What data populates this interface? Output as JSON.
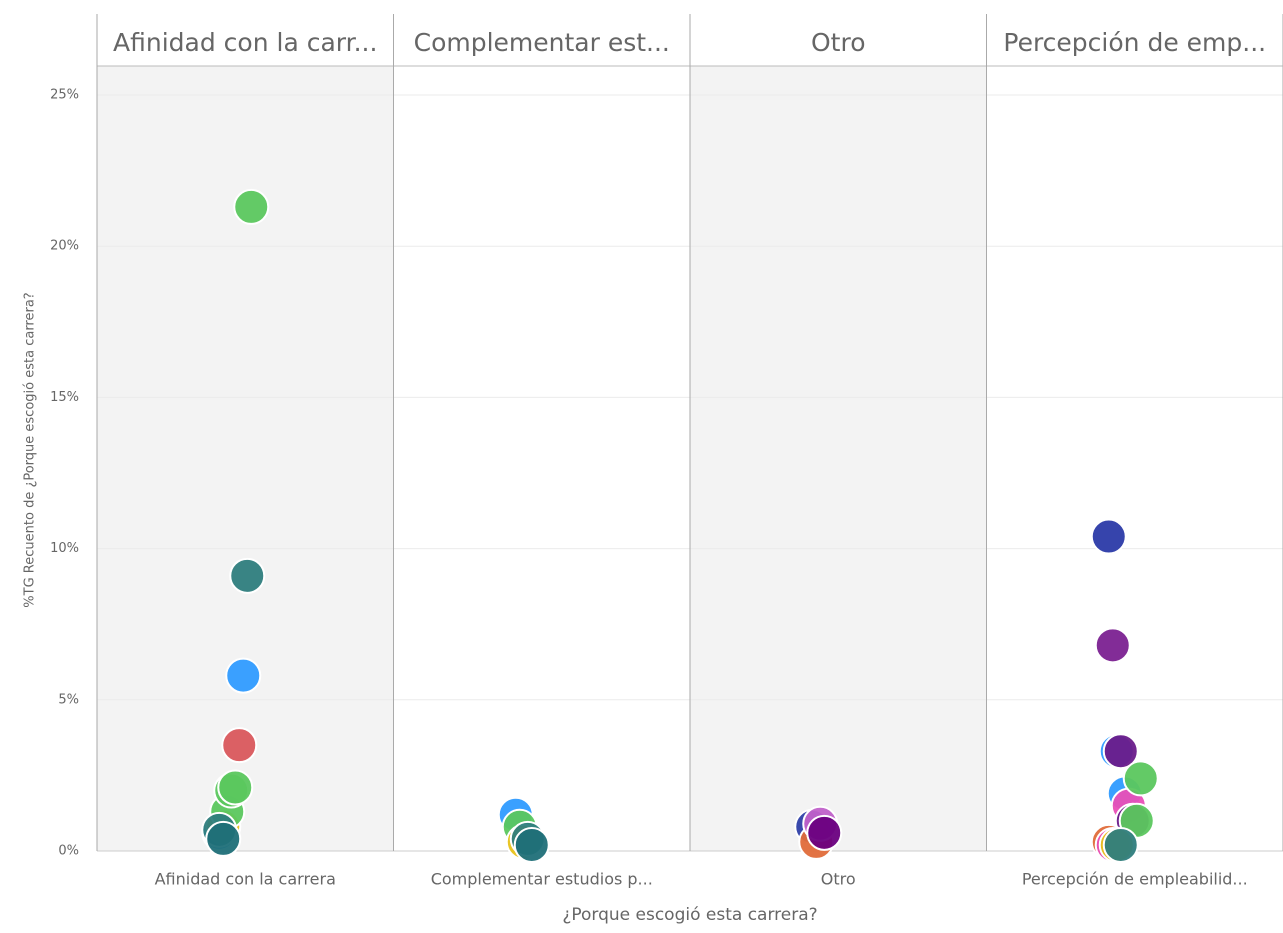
{
  "chart_data": {
    "type": "scatter",
    "y_axis_label": "%TG Recuento de ¿Porque escogió esta carrera?",
    "x_axis_label": "¿Porque escogió esta carrera?",
    "ylim": [
      0,
      25
    ],
    "yticks": [
      {
        "value": 0,
        "label": "0%"
      },
      {
        "value": 5,
        "label": "5%"
      },
      {
        "value": 10,
        "label": "10%"
      },
      {
        "value": 15,
        "label": "15%"
      },
      {
        "value": 20,
        "label": "20%"
      },
      {
        "value": 25,
        "label": "25%"
      }
    ],
    "grid": true,
    "panels": [
      {
        "title": "Afinidad con la carr...",
        "category": "Afinidad con la carrera",
        "values": [
          0.6,
          0.8,
          1.3,
          2.0,
          2.1,
          3.5,
          5.8,
          9.1,
          21.3,
          0.7,
          0.4
        ],
        "colors": [
          "#2f9bff",
          "#e8c21a",
          "#5bc75e",
          "#5bc75e",
          "#5bc75e",
          "#d9575c",
          "#2f9bff",
          "#2e7d7d",
          "#5bc75e",
          "#2e7d7d",
          "#1f6f78"
        ]
      },
      {
        "title": "Complementar est...",
        "category": "Complementar estudios p...",
        "values": [
          1.2,
          0.8,
          0.3,
          0.4,
          0.2
        ],
        "colors": [
          "#2f9bff",
          "#5bc75e",
          "#e8c21a",
          "#2e7d7d",
          "#1f6f78"
        ]
      },
      {
        "title": "Otro",
        "category": "Otro",
        "values": [
          0.8,
          0.3,
          0.9,
          0.6
        ],
        "colors": [
          "#2e3fa8",
          "#e06b3a",
          "#c061c9",
          "#6a0080"
        ]
      },
      {
        "title": "Percepción de emp...",
        "category": "Percepción de empleabilid...",
        "values": [
          10.4,
          6.8,
          3.3,
          3.3,
          1.9,
          1.5,
          1.0,
          1.0,
          2.4,
          0.3,
          0.2,
          0.2,
          0.2
        ],
        "colors": [
          "#2b3aa8",
          "#7b2191",
          "#2f9bff",
          "#6a1b8a",
          "#2f9bff",
          "#e94fb7",
          "#6a1b8a",
          "#5bc75e",
          "#5bc75e",
          "#e06b3a",
          "#e94fb7",
          "#e8c21a",
          "#2e7d7d"
        ]
      }
    ]
  }
}
